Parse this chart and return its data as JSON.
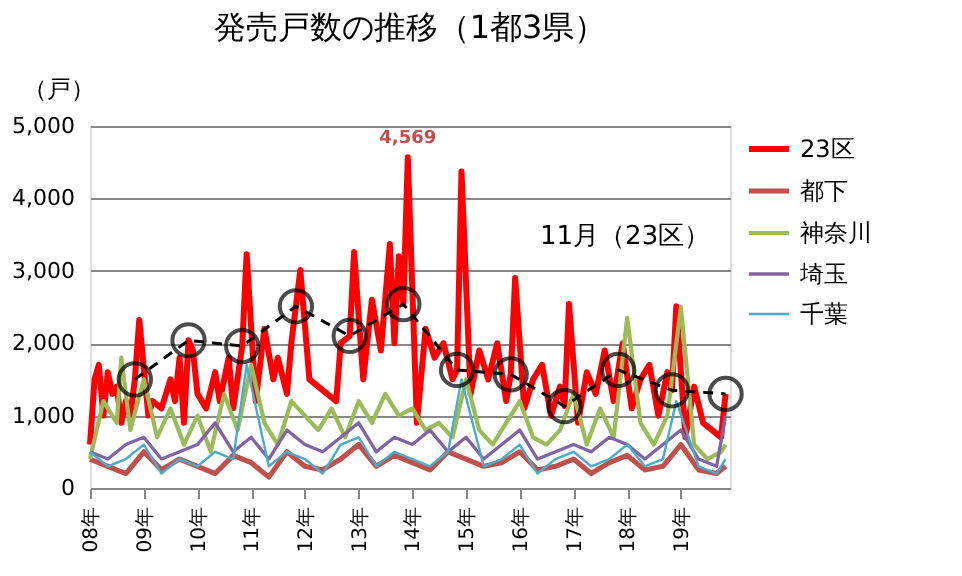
{
  "chart_data": {
    "type": "line",
    "title": "発売戸数の推移（1都3県）",
    "ylabel": "（戸）",
    "xlim": [
      "2008-01",
      "2019-12"
    ],
    "xticks": [
      {
        "value": "2008",
        "label": "08年"
      },
      {
        "value": "2009",
        "label": "09年"
      },
      {
        "value": "2010",
        "label": "10年"
      },
      {
        "value": "2011",
        "label": "11年"
      },
      {
        "value": "2012",
        "label": "12年"
      },
      {
        "value": "2013",
        "label": "13年"
      },
      {
        "value": "2014",
        "label": "14年"
      },
      {
        "value": "2015",
        "label": "15年"
      },
      {
        "value": "2016",
        "label": "16年"
      },
      {
        "value": "2017",
        "label": "17年"
      },
      {
        "value": "2018",
        "label": "18年"
      },
      {
        "value": "2019",
        "label": "19年"
      }
    ],
    "ylim": [
      0,
      5000
    ],
    "yticks": [
      {
        "value": 0,
        "label": "0"
      },
      {
        "value": 1000,
        "label": "1,000"
      },
      {
        "value": 2000,
        "label": "2,000"
      },
      {
        "value": 3000,
        "label": "3,000"
      },
      {
        "value": 4000,
        "label": "4,000"
      },
      {
        "value": 5000,
        "label": "5,000"
      }
    ],
    "grid": "y",
    "legend": "right",
    "series": [
      {
        "name": "23区",
        "color": "#ff0000",
        "x": [
          "2008-01",
          "2008-02",
          "2008-03",
          "2008-04",
          "2008-05",
          "2008-06",
          "2008-07",
          "2008-08",
          "2008-09",
          "2008-10",
          "2008-11",
          "2008-12",
          "2009-02",
          "2009-03",
          "2009-05",
          "2009-07",
          "2009-08",
          "2009-09",
          "2009-10",
          "2009-11",
          "2009-12",
          "2010-01",
          "2010-03",
          "2010-05",
          "2010-06",
          "2010-08",
          "2010-09",
          "2010-11",
          "2010-12",
          "2011-02",
          "2011-04",
          "2011-06",
          "2011-07",
          "2011-09",
          "2011-10",
          "2011-11",
          "2011-12",
          "2012-02",
          "2012-04",
          "2012-06",
          "2012-08",
          "2012-09",
          "2012-11",
          "2012-12",
          "2013-02",
          "2013-04",
          "2013-06",
          "2013-08",
          "2013-09",
          "2013-10",
          "2013-11",
          "2013-12",
          "2014-02",
          "2014-04",
          "2014-06",
          "2014-08",
          "2014-10",
          "2014-11",
          "2014-12",
          "2015-02",
          "2015-04",
          "2015-06",
          "2015-08",
          "2015-10",
          "2015-11",
          "2015-12",
          "2016-02",
          "2016-04",
          "2016-06",
          "2016-08",
          "2016-10",
          "2016-11",
          "2016-12",
          "2017-02",
          "2017-04",
          "2017-06",
          "2017-08",
          "2017-10",
          "2017-11",
          "2017-12",
          "2018-02",
          "2018-04",
          "2018-06",
          "2018-08",
          "2018-10",
          "2018-11",
          "2018-12",
          "2019-02",
          "2019-04",
          "2019-06",
          "2019-08",
          "2019-10",
          "2019-11"
        ],
        "values": [
          600,
          1500,
          1700,
          1000,
          1600,
          1300,
          1400,
          900,
          1200,
          1000,
          1500,
          2320,
          1000,
          1200,
          1100,
          1500,
          1200,
          1800,
          900,
          2040,
          1900,
          1300,
          1100,
          1600,
          1200,
          1800,
          1100,
          1960,
          3230,
          1200,
          2200,
          1500,
          1800,
          1300,
          2000,
          2510,
          3010,
          1500,
          1400,
          1300,
          1200,
          2000,
          2100,
          3260,
          1500,
          2600,
          1900,
          3370,
          2000,
          3200,
          2540,
          4569,
          900,
          2200,
          1800,
          2000,
          1500,
          1630,
          4370,
          1300,
          1900,
          1500,
          2000,
          1200,
          1570,
          2900,
          1100,
          1500,
          1700,
          1000,
          1400,
          1130,
          2540,
          900,
          1600,
          1300,
          1900,
          1200,
          1630,
          2000,
          1100,
          1500,
          1700,
          1000,
          1600,
          1350,
          2510,
          700,
          1400,
          900,
          800,
          700,
          1300
        ]
      },
      {
        "name": "都下",
        "color": "#c0504d",
        "x": [
          "2008-01",
          "2008-05",
          "2008-09",
          "2009-01",
          "2009-05",
          "2009-09",
          "2010-01",
          "2010-05",
          "2010-09",
          "2011-01",
          "2011-05",
          "2011-09",
          "2012-01",
          "2012-05",
          "2012-09",
          "2013-01",
          "2013-05",
          "2013-09",
          "2014-01",
          "2014-05",
          "2014-09",
          "2015-01",
          "2015-05",
          "2015-09",
          "2016-01",
          "2016-05",
          "2016-09",
          "2017-01",
          "2017-05",
          "2017-09",
          "2018-01",
          "2018-05",
          "2018-09",
          "2019-01",
          "2019-05",
          "2019-09",
          "2019-11"
        ],
        "values": [
          400,
          300,
          200,
          500,
          250,
          400,
          300,
          200,
          450,
          350,
          150,
          500,
          300,
          250,
          400,
          600,
          300,
          450,
          350,
          250,
          500,
          400,
          300,
          350,
          500,
          250,
          300,
          400,
          200,
          350,
          450,
          250,
          300,
          600,
          250,
          200,
          300
        ]
      },
      {
        "name": "神奈川",
        "color": "#9bbb59",
        "x": [
          "2008-01",
          "2008-04",
          "2008-07",
          "2008-08",
          "2008-10",
          "2009-01",
          "2009-04",
          "2009-07",
          "2009-10",
          "2010-01",
          "2010-04",
          "2010-07",
          "2010-10",
          "2011-01",
          "2011-04",
          "2011-07",
          "2011-10",
          "2012-01",
          "2012-04",
          "2012-07",
          "2012-10",
          "2013-01",
          "2013-04",
          "2013-07",
          "2013-10",
          "2014-01",
          "2014-04",
          "2014-07",
          "2014-10",
          "2015-01",
          "2015-04",
          "2015-07",
          "2015-10",
          "2016-01",
          "2016-04",
          "2016-07",
          "2016-10",
          "2017-01",
          "2017-04",
          "2017-07",
          "2017-10",
          "2018-01",
          "2018-04",
          "2018-07",
          "2018-10",
          "2019-01",
          "2019-04",
          "2019-07",
          "2019-10",
          "2019-11"
        ],
        "values": [
          400,
          1200,
          900,
          1800,
          800,
          1500,
          700,
          1100,
          600,
          1000,
          500,
          1300,
          800,
          1700,
          900,
          600,
          1200,
          1000,
          800,
          1100,
          700,
          1200,
          900,
          1300,
          1000,
          1100,
          800,
          900,
          700,
          1500,
          800,
          600,
          900,
          1200,
          700,
          600,
          800,
          1300,
          600,
          1100,
          700,
          2350,
          900,
          600,
          1000,
          2500,
          600,
          400,
          500,
          600
        ]
      },
      {
        "name": "埼玉",
        "color": "#8064a2",
        "x": [
          "2008-01",
          "2008-05",
          "2008-09",
          "2009-01",
          "2009-05",
          "2009-09",
          "2010-01",
          "2010-05",
          "2010-09",
          "2011-01",
          "2011-05",
          "2011-09",
          "2012-01",
          "2012-05",
          "2012-09",
          "2013-01",
          "2013-05",
          "2013-09",
          "2014-01",
          "2014-05",
          "2014-09",
          "2015-01",
          "2015-05",
          "2015-09",
          "2016-01",
          "2016-05",
          "2016-09",
          "2017-01",
          "2017-05",
          "2017-09",
          "2018-01",
          "2018-05",
          "2018-09",
          "2019-01",
          "2019-05",
          "2019-09",
          "2019-11"
        ],
        "values": [
          500,
          400,
          600,
          700,
          400,
          500,
          600,
          900,
          500,
          700,
          400,
          800,
          600,
          500,
          700,
          900,
          500,
          700,
          600,
          800,
          500,
          700,
          400,
          600,
          800,
          400,
          500,
          600,
          500,
          700,
          600,
          400,
          600,
          800,
          400,
          300,
          1000
        ]
      },
      {
        "name": "千葉",
        "color": "#4bacc6",
        "x": [
          "2008-01",
          "2008-05",
          "2008-09",
          "2009-01",
          "2009-05",
          "2009-09",
          "2010-01",
          "2010-05",
          "2010-09",
          "2010-12",
          "2011-05",
          "2011-09",
          "2012-01",
          "2012-05",
          "2012-09",
          "2013-01",
          "2013-05",
          "2013-09",
          "2014-01",
          "2014-05",
          "2014-09",
          "2014-12",
          "2015-05",
          "2015-09",
          "2016-01",
          "2016-05",
          "2016-09",
          "2017-01",
          "2017-05",
          "2017-09",
          "2018-01",
          "2018-05",
          "2018-09",
          "2018-12",
          "2019-05",
          "2019-09",
          "2019-11"
        ],
        "values": [
          500,
          300,
          400,
          600,
          200,
          400,
          300,
          500,
          400,
          1700,
          300,
          500,
          400,
          200,
          600,
          700,
          300,
          500,
          400,
          300,
          500,
          1500,
          300,
          400,
          600,
          200,
          400,
          500,
          300,
          400,
          600,
          300,
          400,
          1200,
          300,
          200,
          400
        ]
      },
      {
        "type": "line",
        "color": "#000000",
        "marker": "circle",
        "line_style": "dashed",
        "x": [
          "2008-11",
          "2009-11",
          "2010-11",
          "2011-11",
          "2012-11",
          "2013-11",
          "2014-11",
          "2015-11",
          "2016-11",
          "2017-11",
          "2018-11",
          "2019-11"
        ],
        "values": [
          1500,
          2040,
          1960,
          2510,
          2100,
          2540,
          1630,
          1570,
          1130,
          1630,
          1350,
          1300
        ]
      }
    ],
    "annotations": [
      {
        "text": "4,569",
        "x": "2013-12",
        "y": 4569
      },
      "11月（23区）"
    ]
  }
}
